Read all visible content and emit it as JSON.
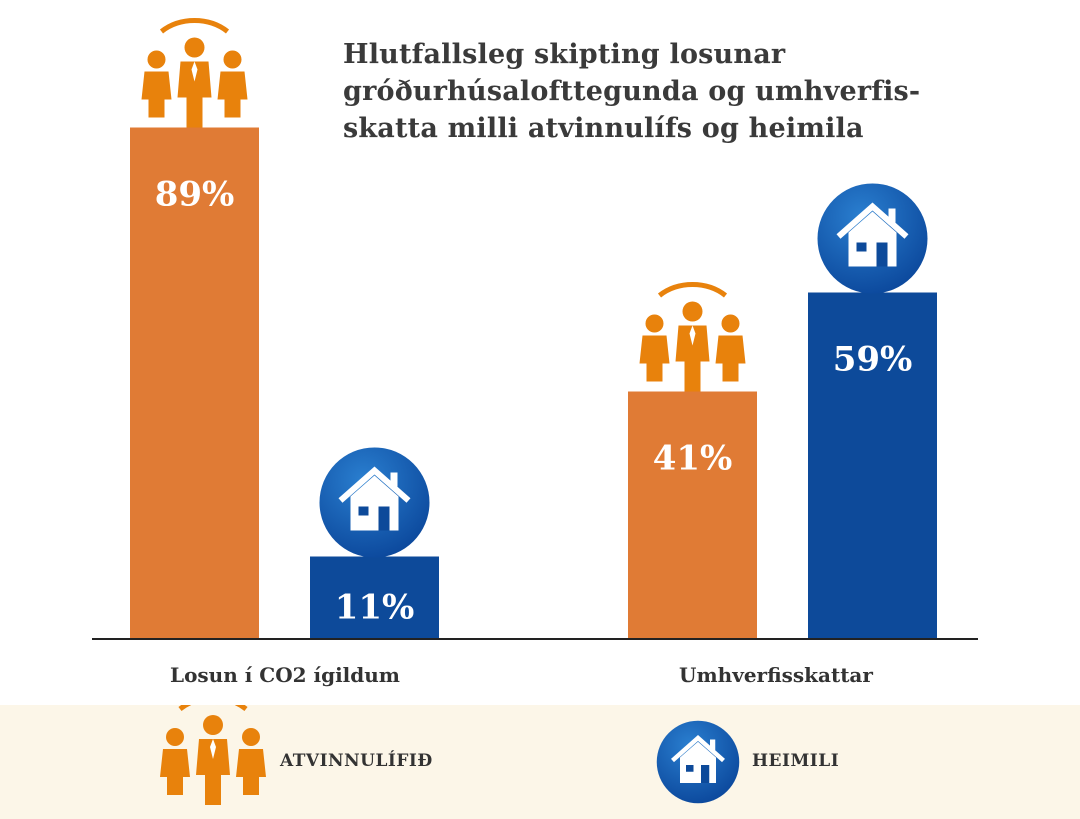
{
  "chart_data": {
    "type": "bar",
    "title": "Hlutfallsleg skipting losunar gróðurhúsalofttegunda og umhverfis-skatta milli atvinnulífs og heimila",
    "title_lines": [
      "Hlutfallsleg skipting losunar",
      "gróðurhúsalofttegunda og umhverfis-",
      "skatta milli atvinnulífs og heimila"
    ],
    "categories": [
      "Losun í CO2 ígildum",
      "Umhverfisskattar"
    ],
    "series": [
      {
        "name": "ATVINNULÍFIÐ",
        "values": [
          89,
          41
        ],
        "labels": [
          "89%",
          "41%"
        ],
        "color": "#e07b35",
        "icon": "people-group-icon"
      },
      {
        "name": "HEIMILI",
        "values": [
          11,
          59
        ],
        "labels": [
          "11%",
          "59%"
        ],
        "color": "#0d4a9a",
        "icon": "house-icon"
      }
    ],
    "ylim": [
      0,
      100
    ],
    "grid": false,
    "legend_placement": "bottom"
  },
  "colors": {
    "orange": "#e07b35",
    "icon_orange": "#e8820c",
    "blue": "#0d4a9a",
    "legend_bg": "#fcf6e8"
  }
}
